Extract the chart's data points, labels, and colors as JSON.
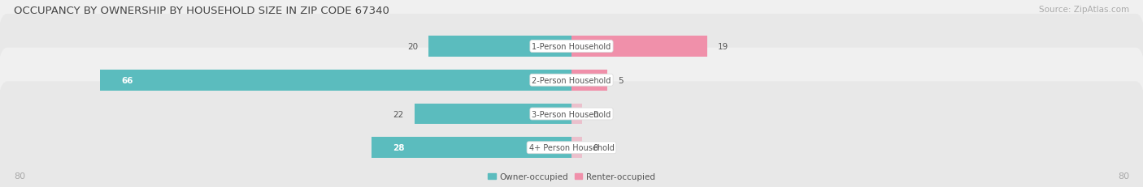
{
  "title": "OCCUPANCY BY OWNERSHIP BY HOUSEHOLD SIZE IN ZIP CODE 67340",
  "source": "Source: ZipAtlas.com",
  "categories": [
    "1-Person Household",
    "2-Person Household",
    "3-Person Household",
    "4+ Person Household"
  ],
  "owner_values": [
    20,
    66,
    22,
    28
  ],
  "renter_values": [
    19,
    5,
    0,
    0
  ],
  "owner_color": "#5bbcbe",
  "renter_color": "#f090aa",
  "row_bg_color_odd": "#f0f0f0",
  "row_bg_color_even": "#e8e8e8",
  "axis_max": 80,
  "title_fontsize": 9.5,
  "source_fontsize": 7.5,
  "label_fontsize": 7.0,
  "value_fontsize": 7.5,
  "legend_fontsize": 7.5,
  "tick_fontsize": 8
}
